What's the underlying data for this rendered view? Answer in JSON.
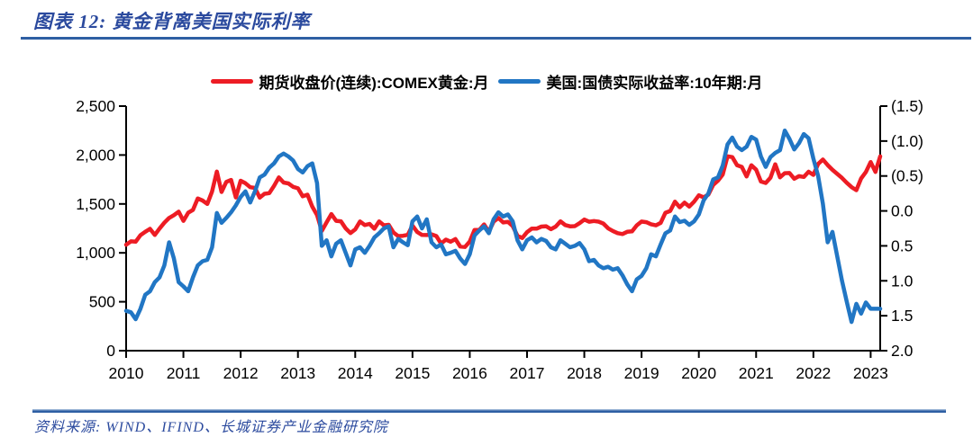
{
  "figure": {
    "caption": "图表 12:  黄金背离美国实际利率",
    "source": "资料来源:  WIND、IFIND、长城证券产业金融研究院"
  },
  "colors": {
    "caption_blue": "#2b4a9e",
    "rule_blue": "#2e5fa3",
    "gold_line_red": "#ed1c24",
    "yield_line_blue": "#2176c4",
    "negative_tick_red": "#ff0000",
    "axis_black": "#000000"
  },
  "chart_data": {
    "type": "line",
    "title": "图表 12: 黄金背离美国实际利率",
    "grid": false,
    "legend_position": "top",
    "x_frequency": "monthly",
    "x_range": [
      "2010-01",
      "2023-03"
    ],
    "x_tick_labels": [
      "2010",
      "2011",
      "2012",
      "2013",
      "2014",
      "2015",
      "2016",
      "2017",
      "2018",
      "2019",
      "2020",
      "2021",
      "2022",
      "2023"
    ],
    "left_axis": {
      "min": 0,
      "max": 2500,
      "tick_labels": [
        "2,500",
        "2,000",
        "1,500",
        "1,000",
        "500",
        "0"
      ],
      "series": "期货收盘价(连续):COMEX黄金:月"
    },
    "right_axis": {
      "min": -1.5,
      "max": 2.0,
      "inverted": true,
      "tick_labels": [
        "(1.5)",
        "(1.0)",
        "(0.5)",
        "0.0",
        "0.5",
        "1.0",
        "1.5",
        "2.0"
      ],
      "negative_label_color": "#ff0000",
      "series": "美国:国债实际收益率:10年期:月"
    },
    "series": [
      {
        "name": "期货收盘价(连续):COMEX黄金:月",
        "axis": "left",
        "color": "#ed1c24",
        "values": [
          1083,
          1118,
          1114,
          1180,
          1215,
          1245,
          1183,
          1248,
          1308,
          1357,
          1385,
          1421,
          1327,
          1410,
          1439,
          1556,
          1535,
          1500,
          1628,
          1831,
          1622,
          1725,
          1745,
          1566,
          1737,
          1711,
          1671,
          1664,
          1564,
          1604,
          1610,
          1685,
          1771,
          1719,
          1710,
          1675,
          1660,
          1578,
          1595,
          1472,
          1387,
          1224,
          1312,
          1396,
          1327,
          1323,
          1250,
          1202,
          1240,
          1321,
          1284,
          1296,
          1246,
          1322,
          1281,
          1287,
          1209,
          1171,
          1175,
          1184,
          1279,
          1213,
          1183,
          1182,
          1189,
          1172,
          1095,
          1135,
          1114,
          1141,
          1065,
          1060,
          1116,
          1234,
          1234,
          1290,
          1215,
          1320,
          1357,
          1311,
          1317,
          1273,
          1174,
          1152,
          1211,
          1248,
          1247,
          1268,
          1272,
          1242,
          1268,
          1322,
          1284,
          1271,
          1273,
          1303,
          1340,
          1318,
          1325,
          1319,
          1300,
          1251,
          1223,
          1201,
          1192,
          1215,
          1220,
          1281,
          1320,
          1313,
          1292,
          1281,
          1306,
          1410,
          1428,
          1523,
          1466,
          1513,
          1473,
          1523,
          1588,
          1567,
          1596,
          1694,
          1737,
          1801,
          1986,
          1979,
          1896,
          1879,
          1781,
          1895,
          1850,
          1729,
          1714,
          1768,
          1905,
          1772,
          1814,
          1816,
          1757,
          1784,
          1776,
          1829,
          1797,
          1909,
          1954,
          1897,
          1848,
          1807,
          1766,
          1716,
          1672,
          1641,
          1760,
          1826,
          1928,
          1827,
          1986
        ]
      },
      {
        "name": "美国:国债实际收益率:10年期:月",
        "axis": "right",
        "color": "#2176c4",
        "values": [
          1.43,
          1.45,
          1.55,
          1.4,
          1.2,
          1.15,
          1.02,
          0.95,
          0.78,
          0.45,
          0.68,
          1.02,
          1.08,
          1.15,
          0.95,
          0.78,
          0.72,
          0.7,
          0.52,
          0.03,
          0.17,
          0.1,
          0.02,
          -0.08,
          -0.2,
          -0.28,
          -0.12,
          -0.28,
          -0.48,
          -0.52,
          -0.62,
          -0.68,
          -0.78,
          -0.82,
          -0.78,
          -0.72,
          -0.6,
          -0.55,
          -0.64,
          -0.68,
          -0.4,
          0.5,
          0.42,
          0.65,
          0.47,
          0.42,
          0.6,
          0.78,
          0.55,
          0.52,
          0.6,
          0.5,
          0.38,
          0.32,
          0.25,
          0.22,
          0.52,
          0.4,
          0.45,
          0.49,
          0.15,
          0.08,
          0.25,
          0.12,
          0.45,
          0.52,
          0.48,
          0.62,
          0.6,
          0.57,
          0.68,
          0.76,
          0.62,
          0.35,
          0.28,
          0.22,
          0.32,
          0.12,
          0.02,
          0.08,
          0.05,
          0.15,
          0.42,
          0.55,
          0.42,
          0.38,
          0.45,
          0.4,
          0.43,
          0.52,
          0.55,
          0.42,
          0.47,
          0.52,
          0.5,
          0.46,
          0.55,
          0.72,
          0.7,
          0.78,
          0.82,
          0.8,
          0.84,
          0.82,
          0.92,
          1.05,
          1.15,
          0.98,
          0.93,
          0.82,
          0.62,
          0.65,
          0.48,
          0.32,
          0.28,
          0.08,
          0.16,
          0.14,
          0.2,
          0.15,
          0.05,
          -0.15,
          -0.25,
          -0.45,
          -0.48,
          -0.65,
          -0.95,
          -1.05,
          -0.92,
          -0.87,
          -0.92,
          -1.06,
          -1.02,
          -0.78,
          -0.63,
          -0.77,
          -0.83,
          -0.87,
          -1.15,
          -1.03,
          -0.88,
          -0.97,
          -1.1,
          -1.04,
          -0.75,
          -0.5,
          -0.1,
          0.45,
          0.3,
          0.65,
          1.0,
          1.3,
          1.59,
          1.33,
          1.47,
          1.31,
          1.4,
          1.4,
          1.4
        ]
      }
    ]
  }
}
